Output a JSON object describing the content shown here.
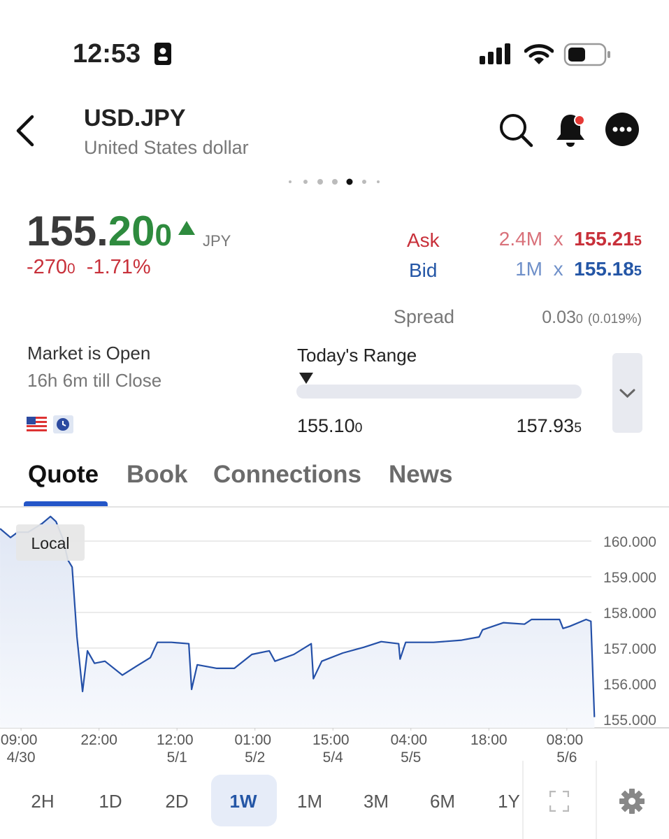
{
  "status_bar": {
    "time": "12:53"
  },
  "header": {
    "title": "USD.JPY",
    "subtitle": "United States dollar"
  },
  "quote": {
    "price_main": "155.",
    "price_mid": "20",
    "price_pip": "0",
    "currency": "JPY",
    "change": "-270",
    "change_pip": "0",
    "change_pct": "-1.71%",
    "ask": {
      "label": "Ask",
      "size": "2.4M",
      "x": "x",
      "price": "155.21",
      "pip": "5"
    },
    "bid": {
      "label": "Bid",
      "size": "1M",
      "x": "x",
      "price": "155.18",
      "pip": "5"
    },
    "spread": {
      "label": "Spread",
      "value": "0.03",
      "pip": "0",
      "pct": "(0.019%)"
    }
  },
  "market": {
    "status": "Market is Open",
    "close_in": "16h 6m till Close"
  },
  "range": {
    "title": "Today's Range",
    "low": "155.10",
    "low_pip": "0",
    "high": "157.93",
    "high_pip": "5"
  },
  "tabs": [
    "Quote",
    "Book",
    "Connections",
    "News"
  ],
  "periods": [
    "2H",
    "1D",
    "2D",
    "1W",
    "1M",
    "3M",
    "6M",
    "1Y"
  ],
  "chart_data": {
    "type": "line",
    "badge": "Local",
    "color": "#2450a8",
    "grid": true,
    "x": [
      -2.69,
      -1.35,
      -0.45,
      0.9,
      2.69,
      3.77,
      4.48,
      5.38,
      6.01,
      6.55,
      7.17,
      7.89,
      8.52,
      9.42,
      10.76,
      13.0,
      14.8,
      16.59,
      17.49,
      19.28,
      21.52,
      21.88,
      22.6,
      25.11,
      27.35,
      29.6,
      31.84,
      32.56,
      34.98,
      37.22,
      37.49,
      38.57,
      41.26,
      43.95,
      46.19,
      48.43,
      48.61,
      49.33,
      52.91,
      56.5,
      58.74,
      59.19,
      61.88,
      64.57,
      65.47,
      69.06,
      69.51,
      70.4,
      72.47,
      73.09,
      73.54
    ],
    "values": [
      160.35,
      160.1,
      160.25,
      160.25,
      160.49,
      160.69,
      160.55,
      160.06,
      159.47,
      159.27,
      157.31,
      155.78,
      156.92,
      156.57,
      156.63,
      156.24,
      156.49,
      156.73,
      157.16,
      157.16,
      157.12,
      155.84,
      156.53,
      156.43,
      156.43,
      156.82,
      156.92,
      156.63,
      156.82,
      157.12,
      156.14,
      156.63,
      156.86,
      157.02,
      157.18,
      157.12,
      156.69,
      157.16,
      157.16,
      157.22,
      157.31,
      157.51,
      157.71,
      157.67,
      157.8,
      157.8,
      157.55,
      157.61,
      157.8,
      157.75,
      155.06
    ],
    "xlim": [
      -2.7,
      73.6
    ],
    "ylim": [
      154.76,
      160.94
    ],
    "xticks": [
      {
        "value": 0,
        "label": "09:00\n4/30"
      },
      {
        "value": 10,
        "label": "22:00"
      },
      {
        "value": 20,
        "label": "12:00\n5/1"
      },
      {
        "value": 30,
        "label": "01:00\n5/2"
      },
      {
        "value": 40,
        "label": "15:00\n5/4"
      },
      {
        "value": 50,
        "label": "04:00\n5/5"
      },
      {
        "value": 60,
        "label": "18:00"
      },
      {
        "value": 70,
        "label": "08:00\n5/6"
      }
    ],
    "yticks": [
      {
        "value": 160,
        "label": "160.000"
      },
      {
        "value": 159,
        "label": "159.000"
      },
      {
        "value": 158,
        "label": "158.000"
      },
      {
        "value": 157,
        "label": "157.000"
      },
      {
        "value": 156,
        "label": "156.000"
      },
      {
        "value": 155,
        "label": "155.000"
      }
    ]
  }
}
